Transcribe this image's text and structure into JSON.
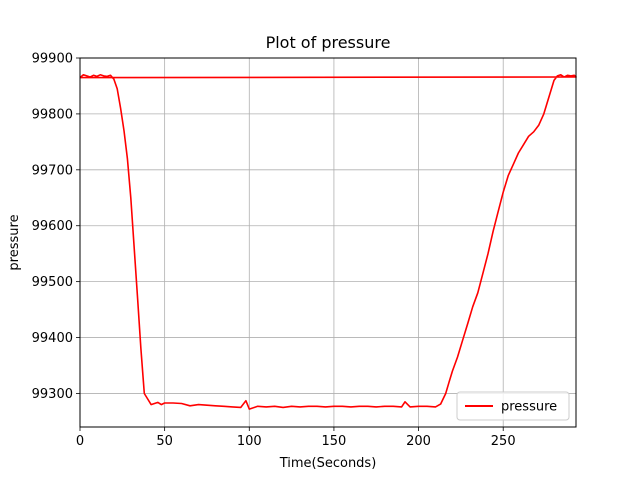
{
  "chart_data": {
    "type": "line",
    "title": "Plot of pressure",
    "xlabel": "Time(Seconds)",
    "ylabel": "pressure",
    "xlim": [
      0,
      293
    ],
    "ylim": [
      99240,
      99900
    ],
    "xticks": [
      0,
      50,
      100,
      150,
      200,
      250
    ],
    "yticks": [
      99300,
      99400,
      99500,
      99600,
      99700,
      99800,
      99900
    ],
    "xtick_labels": [
      "0",
      "50",
      "100",
      "150",
      "200",
      "250"
    ],
    "ytick_labels": [
      "99300",
      "99400",
      "99500",
      "99600",
      "99700",
      "99800",
      "99900"
    ],
    "grid": true,
    "legend_position": "lower-right",
    "series": [
      {
        "name": "pressure",
        "color": "#ff0000",
        "x": [
          0,
          2,
          4,
          6,
          8,
          10,
          12,
          14,
          16,
          18,
          20,
          22,
          24,
          26,
          28,
          30,
          32,
          34,
          36,
          38,
          40,
          42,
          44,
          46,
          48,
          50,
          55,
          60,
          65,
          70,
          75,
          80,
          85,
          90,
          95,
          98,
          100,
          105,
          110,
          115,
          120,
          125,
          130,
          135,
          140,
          145,
          150,
          155,
          160,
          165,
          170,
          175,
          180,
          185,
          190,
          192,
          195,
          200,
          205,
          210,
          213,
          216,
          218,
          220,
          223,
          226,
          229,
          232,
          235,
          238,
          241,
          244,
          247,
          250,
          253,
          256,
          259,
          262,
          265,
          268,
          271,
          274,
          277,
          280,
          282,
          284,
          286,
          288,
          290,
          292,
          293,
          0
        ],
        "y": [
          99865,
          99870,
          99868,
          99866,
          99869,
          99867,
          99870,
          99868,
          99867,
          99869,
          99862,
          99845,
          99810,
          99770,
          99720,
          99650,
          99560,
          99470,
          99380,
          99300,
          99290,
          99280,
          99282,
          99284,
          99280,
          99283,
          99283,
          99282,
          99278,
          99280,
          99279,
          99278,
          99277,
          99276,
          99275,
          99287,
          99272,
          99277,
          99276,
          99277,
          99275,
          99277,
          99276,
          99277,
          99277,
          99276,
          99277,
          99277,
          99276,
          99277,
          99277,
          99276,
          99277,
          99277,
          99276,
          99285,
          99276,
          99277,
          99277,
          99276,
          99281,
          99300,
          99320,
          99340,
          99365,
          99395,
          99425,
          99455,
          99480,
          99515,
          99550,
          99590,
          99625,
          99660,
          99690,
          99710,
          99730,
          99745,
          99760,
          99768,
          99780,
          99800,
          99830,
          99860,
          99868,
          99870,
          99866,
          99869,
          99868,
          99869,
          99866,
          99865
        ]
      }
    ]
  }
}
